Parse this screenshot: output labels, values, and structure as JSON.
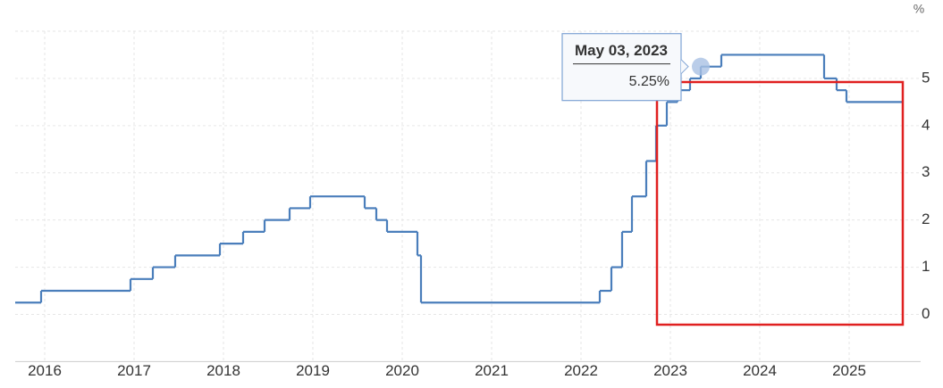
{
  "chart_data": {
    "type": "step",
    "y_unit": "%",
    "x": [
      2015.67,
      2015.96,
      2016.96,
      2017.21,
      2017.46,
      2017.96,
      2018.22,
      2018.46,
      2018.74,
      2018.97,
      2019.58,
      2019.71,
      2019.83,
      2020.17,
      2020.21,
      2022.21,
      2022.34,
      2022.46,
      2022.57,
      2022.73,
      2022.84,
      2022.96,
      2023.08,
      2023.22,
      2023.34,
      2023.57,
      2024.72,
      2024.86,
      2024.97,
      2025.6
    ],
    "series": [
      {
        "color": "#4a7ebb",
        "values": [
          0.25,
          0.5,
          0.75,
          1.0,
          1.25,
          1.5,
          1.75,
          2.0,
          2.25,
          2.5,
          2.25,
          2.0,
          1.75,
          1.25,
          0.25,
          0.5,
          1.0,
          1.75,
          2.5,
          3.25,
          4.0,
          4.5,
          4.75,
          5.0,
          5.25,
          5.5,
          5.0,
          4.75,
          4.5,
          4.5
        ]
      }
    ],
    "xlim": [
      2015.67,
      2025.8
    ],
    "xticks": [
      2016,
      2017,
      2018,
      2019,
      2020,
      2021,
      2022,
      2023,
      2024,
      2025
    ],
    "ylim": [
      -1,
      6
    ],
    "yticks": [
      0,
      1,
      2,
      3,
      4,
      5
    ],
    "grid": true,
    "tooltip": {
      "date": "May 03, 2023",
      "x": 2023.34,
      "value": 5.25,
      "value_label": "5.25%"
    }
  }
}
